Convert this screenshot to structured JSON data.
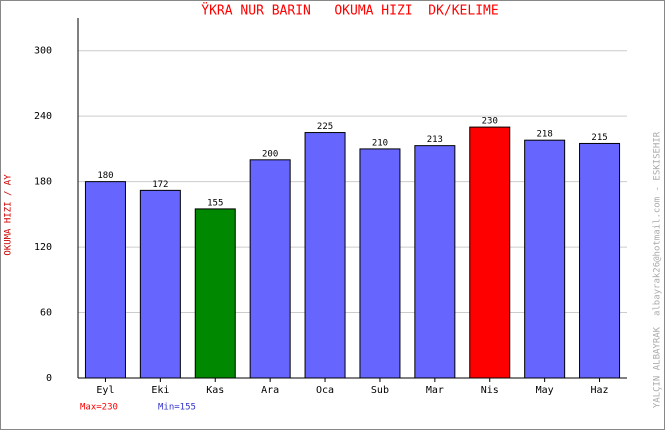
{
  "chart_data": {
    "type": "bar",
    "title": "ŸKRA NUR BARIN   OKUMA HIZI  DK/KELIME",
    "y_label": "OKUMA HIZI / AY",
    "side_note": "YALÇIN ALBAYRAK  albayrak26@hotmail.com - ESKISEHIR",
    "max_label": "Max=230",
    "min_label": "Min=155",
    "categories": [
      "Eyl",
      "Eki",
      "Kas",
      "Ara",
      "Oca",
      "Sub",
      "Mar",
      "Nis",
      "May",
      "Haz"
    ],
    "values": [
      180,
      172,
      155,
      200,
      225,
      210,
      213,
      230,
      218,
      215
    ],
    "colors": [
      "#6666ff",
      "#6666ff",
      "#008800",
      "#6666ff",
      "#6666ff",
      "#6666ff",
      "#6666ff",
      "#ff0000",
      "#6666ff",
      "#6666ff"
    ],
    "ylim": [
      0,
      330
    ],
    "yticks": [
      0,
      60,
      120,
      180,
      240,
      300
    ],
    "grid": true
  }
}
